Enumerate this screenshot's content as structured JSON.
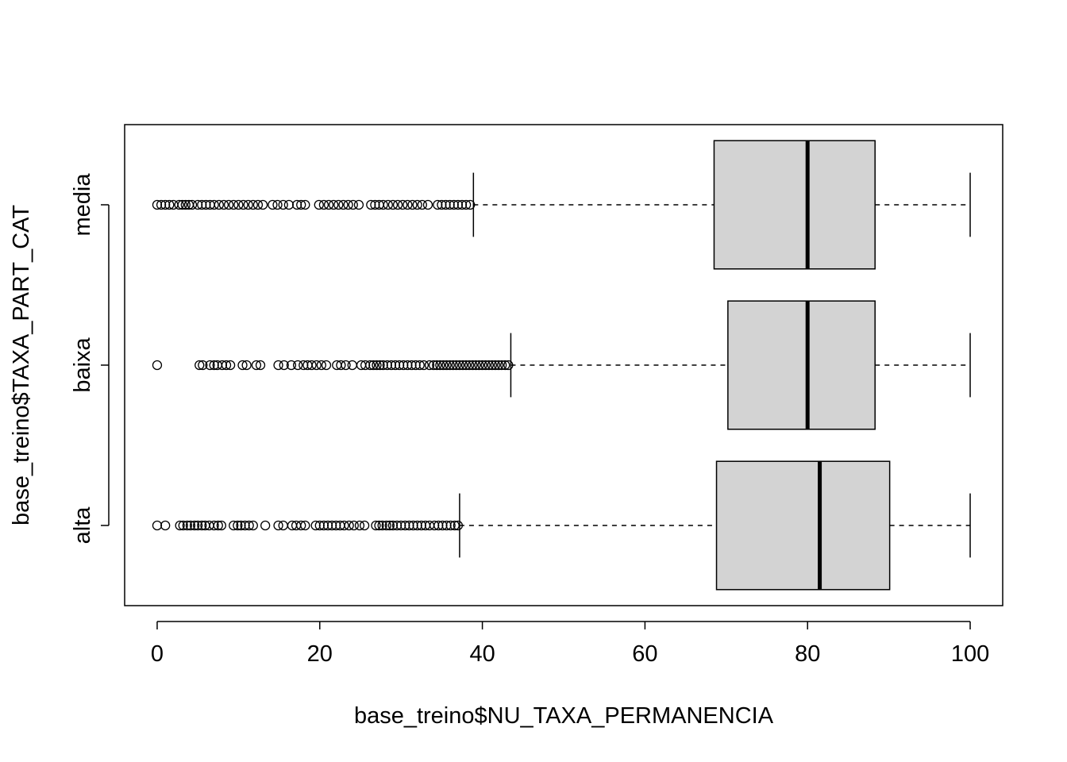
{
  "chart_data": {
    "type": "boxplot",
    "orientation": "horizontal",
    "xlabel": "base_treino$NU_TAXA_PERMANENCIA",
    "ylabel": "base_treino$TAXA_PART_CAT",
    "xlim": [
      -4,
      104
    ],
    "x_ticks": [
      "0",
      "20",
      "40",
      "60",
      "80",
      "100"
    ],
    "x_tick_values": [
      0,
      20,
      40,
      60,
      80,
      100
    ],
    "categories": [
      "alta",
      "baixa",
      "media"
    ],
    "boxes": [
      {
        "category": "alta",
        "whisker_low": 37.2,
        "q1": 68.8,
        "median": 81.5,
        "q3": 90.1,
        "whisker_high": 100,
        "outliers": [
          0,
          1,
          2.8,
          3.2,
          3.7,
          4.1,
          4.6,
          5.0,
          5.5,
          5.9,
          6.4,
          7.0,
          7.5,
          7.9,
          9.4,
          9.9,
          10.3,
          10.8,
          11.3,
          11.8,
          13.3,
          14.9,
          15.5,
          16.6,
          17.1,
          17.7,
          18.2,
          19.5,
          20.0,
          20.5,
          21.0,
          21.5,
          22.0,
          22.5,
          23.0,
          23.6,
          24.2,
          24.9,
          25.5,
          26.9,
          27.3,
          27.7,
          28.2,
          28.6,
          29.0,
          29.5,
          30.0,
          30.5,
          31.0,
          31.5,
          32.0,
          32.5,
          33.0,
          33.5,
          34.1,
          34.6,
          35.1,
          35.6,
          36.1,
          36.6,
          37.0
        ]
      },
      {
        "category": "baixa",
        "whisker_low": 43.5,
        "q1": 70.2,
        "median": 80.0,
        "q3": 88.3,
        "whisker_high": 100,
        "outliers": [
          0,
          5.2,
          5.6,
          6.5,
          7.0,
          7.4,
          8.0,
          8.5,
          9.0,
          10.5,
          11.0,
          12.2,
          12.7,
          14.9,
          15.6,
          16.5,
          17.3,
          18.0,
          18.5,
          19.0,
          19.6,
          20.2,
          20.8,
          22.1,
          22.6,
          23.2,
          24.0,
          25.1,
          25.6,
          26.2,
          26.6,
          27.0,
          27.4,
          27.8,
          28.3,
          28.8,
          29.3,
          29.8,
          30.3,
          30.8,
          31.3,
          31.8,
          32.3,
          32.8,
          33.5,
          34.0,
          34.4,
          34.8,
          35.2,
          35.6,
          36.0,
          36.4,
          36.8,
          37.2,
          37.6,
          38.0,
          38.4,
          38.8,
          39.2,
          39.6,
          40.0,
          40.4,
          40.8,
          41.2,
          41.6,
          42.0,
          42.4,
          42.8,
          43.2
        ]
      },
      {
        "category": "media",
        "whisker_low": 38.9,
        "q1": 68.5,
        "median": 80.0,
        "q3": 88.3,
        "whisker_high": 100,
        "outliers": [
          0,
          0.5,
          1.0,
          1.5,
          2.0,
          2.7,
          3.1,
          3.5,
          3.9,
          4.3,
          5.0,
          5.5,
          6.0,
          6.5,
          7.0,
          7.6,
          8.2,
          8.8,
          9.4,
          10.0,
          10.6,
          11.2,
          11.8,
          12.4,
          13.0,
          14.2,
          14.8,
          15.5,
          16.2,
          17.2,
          17.7,
          18.2,
          19.9,
          20.5,
          21.1,
          21.7,
          22.3,
          22.9,
          23.5,
          24.1,
          24.8,
          26.3,
          26.8,
          27.3,
          27.8,
          28.4,
          29.0,
          29.6,
          30.2,
          30.8,
          31.4,
          32.0,
          32.6,
          33.3,
          34.5,
          35.0,
          35.5,
          36.0,
          36.5,
          37.0,
          37.5,
          38.0,
          38.5
        ]
      }
    ]
  }
}
